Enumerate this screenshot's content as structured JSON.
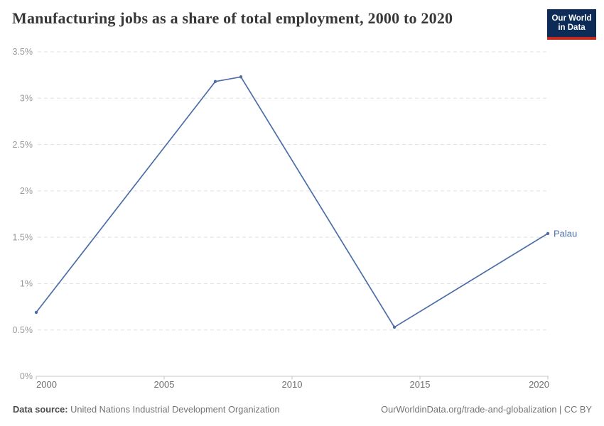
{
  "header": {
    "title": "Manufacturing jobs as a share of total employment, 2000 to 2020",
    "logo": {
      "line1": "Our World",
      "line2": "in Data"
    }
  },
  "chart_data": {
    "type": "line",
    "title": "Manufacturing jobs as a share of total employment, 2000 to 2020",
    "series": [
      {
        "name": "Palau",
        "color": "#4c6ea8",
        "x": [
          2000,
          2007,
          2008,
          2014,
          2020
        ],
        "y": [
          0.69,
          3.18,
          3.23,
          0.53,
          1.54
        ]
      }
    ],
    "end_label": "Palau",
    "xlabel": "",
    "ylabel": "",
    "xlim": [
      2000,
      2020
    ],
    "ylim": [
      0,
      3.5
    ],
    "xticks": [
      2000,
      2005,
      2010,
      2015,
      2020
    ],
    "xtick_labels": [
      "2000",
      "2005",
      "2010",
      "2015",
      "2020"
    ],
    "yticks": [
      0,
      0.5,
      1,
      1.5,
      2,
      2.5,
      3,
      3.5
    ],
    "ytick_labels": [
      "0%",
      "0.5%",
      "1%",
      "1.5%",
      "2%",
      "2.5%",
      "3%",
      "3.5%"
    ],
    "grid": "horizontal-dashed",
    "legend_position": "line-end-label"
  },
  "footer": {
    "source_label": "Data source:",
    "source_value": "United Nations Industrial Development Organization",
    "link_text": "OurWorldinData.org/trade-and-globalization | CC BY"
  },
  "colors": {
    "line": "#4c6ea8",
    "grid": "#e0e0e0",
    "axis": "#c6c6c6",
    "ytick_text": "#9a9a9a",
    "xtick_text": "#6f6f6f",
    "title_text": "#373737",
    "footer_text": "#737373",
    "logo_bg": "#0d2b57",
    "logo_bar": "#c5281c"
  }
}
